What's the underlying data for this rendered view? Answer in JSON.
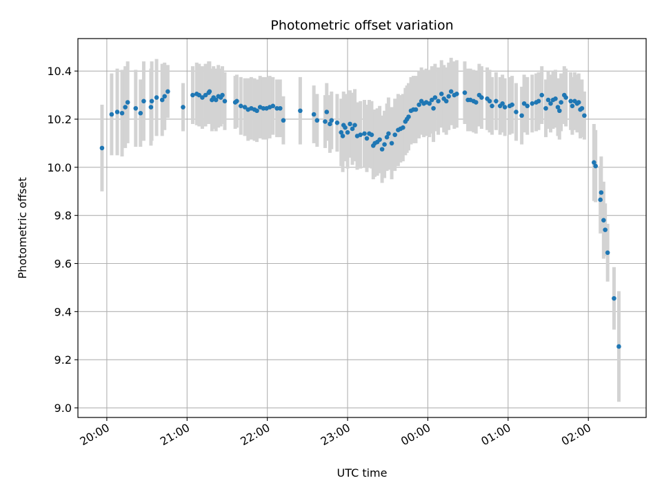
{
  "chart_data": {
    "type": "scatter",
    "title": "Photometric offset variation",
    "xlabel": "UTC time",
    "ylabel": "Photometric offset",
    "x_unit": "hours past 00:00 UTC",
    "xlim": [
      -4.36,
      2.72
    ],
    "ylim": [
      8.96,
      10.535
    ],
    "grid": true,
    "x_ticks": [
      {
        "value": -4,
        "label": "20:00"
      },
      {
        "value": -3,
        "label": "21:00"
      },
      {
        "value": -2,
        "label": "22:00"
      },
      {
        "value": -1,
        "label": "23:00"
      },
      {
        "value": 0,
        "label": "00:00"
      },
      {
        "value": 1,
        "label": "01:00"
      },
      {
        "value": 2,
        "label": "02:00"
      }
    ],
    "y_ticks": [
      {
        "value": 9.0,
        "label": "9.0"
      },
      {
        "value": 9.2,
        "label": "9.2"
      },
      {
        "value": 9.4,
        "label": "9.4"
      },
      {
        "value": 9.6,
        "label": "9.6"
      },
      {
        "value": 9.8,
        "label": "9.8"
      },
      {
        "value": 10.0,
        "label": "10.0"
      },
      {
        "value": 10.2,
        "label": "10.2"
      },
      {
        "value": 10.4,
        "label": "10.4"
      }
    ],
    "colors": {
      "points": "#1f77b4",
      "errorbars": "#d3d3d3",
      "grid": "#b0b0b0"
    },
    "series": [
      {
        "points": [
          [
            -4.06,
            10.08,
            0.18
          ],
          [
            -3.94,
            10.22,
            0.17
          ],
          [
            -3.87,
            10.23,
            0.18
          ],
          [
            -3.81,
            10.225,
            0.18
          ],
          [
            -3.77,
            10.25,
            0.17
          ],
          [
            -3.74,
            10.27,
            0.17
          ],
          [
            -3.64,
            10.245,
            0.16
          ],
          [
            -3.58,
            10.225,
            0.14
          ],
          [
            -3.54,
            10.275,
            0.165
          ],
          [
            -3.45,
            10.25,
            0.16
          ],
          [
            -3.44,
            10.275,
            0.165
          ],
          [
            -3.38,
            10.29,
            0.16
          ],
          [
            -3.31,
            10.28,
            0.15
          ],
          [
            -3.28,
            10.295,
            0.14
          ],
          [
            -3.24,
            10.315,
            0.11
          ],
          [
            -3.05,
            10.25,
            0.1
          ],
          [
            -2.93,
            10.3,
            0.12
          ],
          [
            -2.88,
            10.305,
            0.13
          ],
          [
            -2.85,
            10.3,
            0.13
          ],
          [
            -2.81,
            10.29,
            0.13
          ],
          [
            -2.77,
            10.3,
            0.13
          ],
          [
            -2.73,
            10.31,
            0.13
          ],
          [
            -2.72,
            10.315,
            0.125
          ],
          [
            -2.69,
            10.28,
            0.13
          ],
          [
            -2.67,
            10.29,
            0.13
          ],
          [
            -2.64,
            10.28,
            0.13
          ],
          [
            -2.61,
            10.295,
            0.13
          ],
          [
            -2.58,
            10.29,
            0.12
          ],
          [
            -2.56,
            10.3,
            0.12
          ],
          [
            -2.53,
            10.275,
            0.12
          ],
          [
            -2.4,
            10.27,
            0.11
          ],
          [
            -2.38,
            10.275,
            0.11
          ],
          [
            -2.33,
            10.255,
            0.12
          ],
          [
            -2.28,
            10.25,
            0.12
          ],
          [
            -2.24,
            10.24,
            0.13
          ],
          [
            -2.2,
            10.245,
            0.13
          ],
          [
            -2.16,
            10.24,
            0.13
          ],
          [
            -2.13,
            10.235,
            0.13
          ],
          [
            -2.09,
            10.25,
            0.13
          ],
          [
            -2.05,
            10.245,
            0.13
          ],
          [
            -2.01,
            10.245,
            0.13
          ],
          [
            -1.97,
            10.25,
            0.13
          ],
          [
            -1.93,
            10.255,
            0.12
          ],
          [
            -1.88,
            10.245,
            0.12
          ],
          [
            -1.84,
            10.245,
            0.12
          ],
          [
            -1.8,
            10.195,
            0.1
          ],
          [
            -1.59,
            10.235,
            0.14
          ],
          [
            -1.42,
            10.22,
            0.12
          ],
          [
            -1.38,
            10.195,
            0.11
          ],
          [
            -1.28,
            10.19,
            0.11
          ],
          [
            -1.26,
            10.23,
            0.12
          ],
          [
            -1.22,
            10.18,
            0.12
          ],
          [
            -1.2,
            10.195,
            0.12
          ],
          [
            -1.13,
            10.185,
            0.12
          ],
          [
            -1.08,
            10.145,
            0.14
          ],
          [
            -1.06,
            10.13,
            0.15
          ],
          [
            -1.05,
            10.175,
            0.14
          ],
          [
            -1.03,
            10.165,
            0.14
          ],
          [
            -1.0,
            10.145,
            0.15
          ],
          [
            -0.97,
            10.18,
            0.14
          ],
          [
            -0.94,
            10.16,
            0.15
          ],
          [
            -0.91,
            10.175,
            0.15
          ],
          [
            -0.88,
            10.13,
            0.14
          ],
          [
            -0.84,
            10.135,
            0.14
          ],
          [
            -0.79,
            10.14,
            0.14
          ],
          [
            -0.76,
            10.12,
            0.14
          ],
          [
            -0.73,
            10.14,
            0.14
          ],
          [
            -0.7,
            10.135,
            0.14
          ],
          [
            -0.68,
            10.09,
            0.14
          ],
          [
            -0.66,
            10.1,
            0.14
          ],
          [
            -0.63,
            10.105,
            0.14
          ],
          [
            -0.6,
            10.115,
            0.14
          ],
          [
            -0.57,
            10.075,
            0.14
          ],
          [
            -0.54,
            10.095,
            0.14
          ],
          [
            -0.51,
            10.125,
            0.14
          ],
          [
            -0.49,
            10.14,
            0.15
          ],
          [
            -0.45,
            10.1,
            0.15
          ],
          [
            -0.41,
            10.135,
            0.15
          ],
          [
            -0.37,
            10.155,
            0.15
          ],
          [
            -0.34,
            10.16,
            0.14
          ],
          [
            -0.31,
            10.165,
            0.14
          ],
          [
            -0.28,
            10.19,
            0.14
          ],
          [
            -0.26,
            10.2,
            0.14
          ],
          [
            -0.24,
            10.21,
            0.14
          ],
          [
            -0.21,
            10.235,
            0.14
          ],
          [
            -0.18,
            10.24,
            0.14
          ],
          [
            -0.15,
            10.24,
            0.14
          ],
          [
            -0.11,
            10.26,
            0.14
          ],
          [
            -0.08,
            10.275,
            0.14
          ],
          [
            -0.05,
            10.265,
            0.14
          ],
          [
            -0.02,
            10.27,
            0.14
          ],
          [
            0.02,
            10.265,
            0.14
          ],
          [
            0.05,
            10.28,
            0.14
          ],
          [
            0.07,
            10.245,
            0.14
          ],
          [
            0.09,
            10.29,
            0.14
          ],
          [
            0.13,
            10.275,
            0.14
          ],
          [
            0.17,
            10.305,
            0.14
          ],
          [
            0.2,
            10.285,
            0.14
          ],
          [
            0.23,
            10.275,
            0.14
          ],
          [
            0.26,
            10.295,
            0.14
          ],
          [
            0.29,
            10.315,
            0.14
          ],
          [
            0.33,
            10.3,
            0.14
          ],
          [
            0.36,
            10.305,
            0.14
          ],
          [
            0.46,
            10.31,
            0.13
          ],
          [
            0.5,
            10.28,
            0.13
          ],
          [
            0.53,
            10.28,
            0.13
          ],
          [
            0.57,
            10.275,
            0.13
          ],
          [
            0.6,
            10.27,
            0.13
          ],
          [
            0.64,
            10.3,
            0.13
          ],
          [
            0.67,
            10.29,
            0.13
          ],
          [
            0.74,
            10.285,
            0.13
          ],
          [
            0.77,
            10.275,
            0.13
          ],
          [
            0.8,
            10.255,
            0.12
          ],
          [
            0.85,
            10.275,
            0.12
          ],
          [
            0.9,
            10.255,
            0.12
          ],
          [
            0.93,
            10.265,
            0.12
          ],
          [
            0.96,
            10.25,
            0.12
          ],
          [
            1.02,
            10.255,
            0.12
          ],
          [
            1.05,
            10.26,
            0.12
          ],
          [
            1.1,
            10.23,
            0.12
          ],
          [
            1.17,
            10.215,
            0.12
          ],
          [
            1.2,
            10.265,
            0.12
          ],
          [
            1.24,
            10.255,
            0.12
          ],
          [
            1.3,
            10.265,
            0.12
          ],
          [
            1.35,
            10.27,
            0.12
          ],
          [
            1.38,
            10.275,
            0.12
          ],
          [
            1.42,
            10.3,
            0.12
          ],
          [
            1.47,
            10.245,
            0.12
          ],
          [
            1.5,
            10.28,
            0.12
          ],
          [
            1.53,
            10.265,
            0.12
          ],
          [
            1.56,
            10.28,
            0.12
          ],
          [
            1.59,
            10.285,
            0.12
          ],
          [
            1.62,
            10.25,
            0.12
          ],
          [
            1.64,
            10.235,
            0.12
          ],
          [
            1.66,
            10.27,
            0.12
          ],
          [
            1.7,
            10.3,
            0.12
          ],
          [
            1.72,
            10.29,
            0.12
          ],
          [
            1.78,
            10.275,
            0.12
          ],
          [
            1.8,
            10.255,
            0.12
          ],
          [
            1.83,
            10.275,
            0.12
          ],
          [
            1.86,
            10.265,
            0.12
          ],
          [
            1.88,
            10.27,
            0.12
          ],
          [
            1.9,
            10.24,
            0.12
          ],
          [
            1.92,
            10.245,
            0.12
          ],
          [
            1.95,
            10.215,
            0.1
          ],
          [
            2.07,
            10.02,
            0.16
          ],
          [
            2.09,
            10.005,
            0.15
          ],
          [
            2.15,
            9.865,
            0.14
          ],
          [
            2.16,
            9.895,
            0.15
          ],
          [
            2.19,
            9.78,
            0.16
          ],
          [
            2.21,
            9.74,
            0.11
          ],
          [
            2.24,
            9.645,
            0.12
          ],
          [
            2.32,
            9.455,
            0.13
          ],
          [
            2.38,
            9.255,
            0.23
          ]
        ]
      }
    ]
  }
}
